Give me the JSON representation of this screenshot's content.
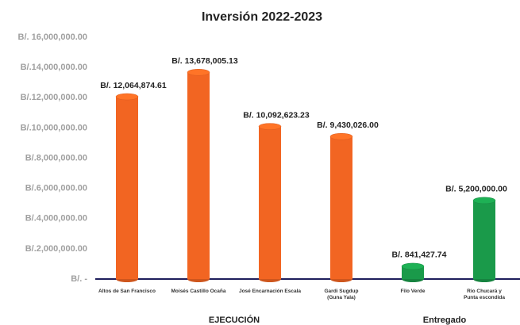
{
  "chart_data": {
    "type": "bar",
    "title": "Inversión 2022-2023",
    "categories": [
      "Altos de San Francisco",
      "Moisés Castillo Ocaña",
      "José Encarnación Escala",
      "Gardi Sugdup\n(Guna Yala)",
      "Filo Verde",
      "Rio Chucará y\nPunta escondida"
    ],
    "values": [
      12064874.61,
      13678005.13,
      10092623.23,
      9430026,
      841427.74,
      5200000
    ],
    "value_labels": [
      "B/. 12,064,874.61",
      "B/. 13,678,005.13",
      "B/. 10,092,623.23",
      "B/. 9,430,026.00",
      "B/. 841,427.74",
      "B/. 5,200,000.00"
    ],
    "colors": [
      "#f26522",
      "#f26522",
      "#f26522",
      "#f26522",
      "#1a9a4a",
      "#1a9a4a"
    ],
    "group_labels": [
      "EJECUCIÓN",
      "Entregado"
    ],
    "ylim": [
      0,
      16000000
    ],
    "yticks": [
      {
        "value": 0,
        "label": "B/. -"
      },
      {
        "value": 2000000,
        "label": "B/.2,000,000.00"
      },
      {
        "value": 4000000,
        "label": "B/.4,000,000.00"
      },
      {
        "value": 6000000,
        "label": "B/.6,000,000.00"
      },
      {
        "value": 8000000,
        "label": "B/.8,000,000.00"
      },
      {
        "value": 10000000,
        "label": "B/.10,000,000.00"
      },
      {
        "value": 12000000,
        "label": "B/.12,000,000.00"
      },
      {
        "value": 14000000,
        "label": "B/.14,000,000.00"
      },
      {
        "value": 16000000,
        "label": "B/. 16,000,000.00"
      }
    ],
    "grid": false
  }
}
